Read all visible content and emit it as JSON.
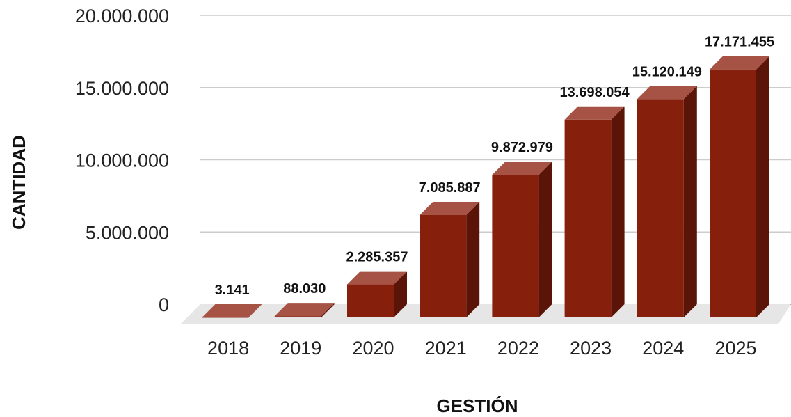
{
  "chart_data": {
    "type": "bar",
    "style": "3d-column",
    "xlabel": "GESTIÓN",
    "ylabel": "CANTIDAD",
    "categories": [
      "2018",
      "2019",
      "2020",
      "2021",
      "2022",
      "2023",
      "2024",
      "2025"
    ],
    "values": [
      3141,
      88030,
      2285357,
      7085887,
      9872979,
      13698054,
      15120149,
      17171455
    ],
    "value_labels": [
      "3.141",
      "88.030",
      "2.285.357",
      "7.085.887",
      "9.872.979",
      "13.698.054",
      "15.120.149",
      "17.171.455"
    ],
    "ylim": [
      0,
      20000000
    ],
    "yticks": [
      0,
      5000000,
      10000000,
      15000000,
      20000000
    ],
    "ytick_labels": [
      "0",
      "5.000.000",
      "10.000.000",
      "15.000.000",
      "20.000.000"
    ],
    "grid": true,
    "legend": "none",
    "colors": {
      "bar_front": "#861F0C",
      "bar_top": "#A65244",
      "bar_side": "#5A1408",
      "floor": "#E6E6E6",
      "gridline": "#CCCCCC",
      "baseline": "#333333"
    }
  }
}
